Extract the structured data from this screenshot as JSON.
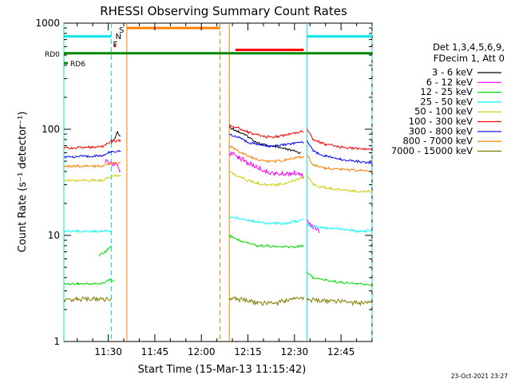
{
  "chart_data": {
    "type": "line",
    "title": "RHESSI Observing Summary Count Rates",
    "xlabel": "Start Time (15-Mar-13 11:15:42)",
    "ylabel": "Count Rate (s⁻¹ detector⁻¹)",
    "y_scale": "log",
    "ylim": [
      1,
      1000
    ],
    "y_ticks": [
      {
        "value": 1,
        "label": "1"
      },
      {
        "value": 10,
        "label": "10"
      },
      {
        "value": 100,
        "label": "100"
      },
      {
        "value": 1000,
        "label": "1000"
      }
    ],
    "xlim": [
      "11:15:42",
      "12:55"
    ],
    "x_ticks": [
      "11:30",
      "11:45",
      "12:00",
      "12:15",
      "12:30",
      "12:45"
    ],
    "legend_header": [
      "Det 1,3,4,5,6,9,",
      "FDecim 1, Att 0"
    ],
    "legend_position": "right",
    "footer_date": "23-Oct-2021 23:27",
    "flags": [
      {
        "label": "RD0",
        "color": "#008800",
        "level": 520,
        "start": "11:15:42",
        "end": "12:55"
      },
      {
        "label": "RD6",
        "color": "#008800",
        "level": 420,
        "start": "11:15:42",
        "end": "11:17"
      }
    ],
    "flag_markers": [
      {
        "label": "S",
        "color": "#ff7f00",
        "at": "11:34"
      },
      {
        "label": "N",
        "color": "#00dddd",
        "at": "11:33"
      },
      {
        "label": "F",
        "color": "#ff0000",
        "at": "11:32"
      }
    ],
    "flag_bars": [
      {
        "name": "night",
        "color": "#00e5e5",
        "level": 750,
        "start": "11:15:42",
        "end": "11:31"
      },
      {
        "name": "night",
        "color": "#00e5e5",
        "level": 750,
        "start": "12:34",
        "end": "12:55"
      },
      {
        "name": "saa",
        "color": "#ff7f00",
        "level": 900,
        "start": "11:36",
        "end": "12:06"
      },
      {
        "name": "flare",
        "color": "#ff0000",
        "level": 560,
        "start": "12:11",
        "end": "12:33"
      },
      {
        "name": "fpoint",
        "color": "#ff0000",
        "level": 610,
        "start": "11:32",
        "end": "11:32.5"
      }
    ],
    "vlines": [
      {
        "color": "#00e5e5",
        "style": "solid",
        "at": "11:15:42"
      },
      {
        "color": "#00e5e5",
        "style": "dashed",
        "at": "11:31"
      },
      {
        "color": "#ff7f00",
        "style": "solid",
        "at": "11:36"
      },
      {
        "color": "#ff7f00",
        "style": "dashed",
        "at": "12:06"
      },
      {
        "color": "#ff7f00",
        "style": "solid",
        "at": "12:09"
      },
      {
        "color": "#00e5e5",
        "style": "solid",
        "at": "12:34"
      },
      {
        "color": "#00e5e5",
        "style": "dashed",
        "at": "12:55"
      }
    ],
    "series": [
      {
        "name": "3 - 6 keV",
        "color": "#000000",
        "segments": [
          {
            "x": [
              "11:31",
              "11:32",
              "11:33",
              "11:34"
            ],
            "y": [
              75,
              80,
              95,
              85
            ]
          },
          {
            "x": [
              "12:09",
              "12:12",
              "12:15",
              "12:18",
              "12:21",
              "12:24",
              "12:27",
              "12:30",
              "12:32"
            ],
            "y": [
              105,
              95,
              85,
              75,
              70,
              68,
              65,
              62,
              60
            ]
          }
        ]
      },
      {
        "name": "6 - 12 keV",
        "color": "#ff00ff",
        "segments": [
          {
            "x": [
              "11:29",
              "11:31",
              "11:33",
              "11:34"
            ],
            "y": [
              50,
              48,
              45,
              40
            ]
          },
          {
            "x": [
              "12:09",
              "12:12",
              "12:15",
              "12:18",
              "12:21",
              "12:24",
              "12:27",
              "12:30",
              "12:33"
            ],
            "y": [
              60,
              55,
              48,
              44,
              40,
              38,
              38,
              39,
              36
            ]
          },
          {
            "x": [
              "12:34",
              "12:36",
              "12:38"
            ],
            "y": [
              14,
              12,
              11
            ]
          }
        ]
      },
      {
        "name": "12 - 25 keV",
        "color": "#00dd00",
        "segments": [
          {
            "x": [
              "11:15:42",
              "11:20",
              "11:25",
              "11:28",
              "11:30",
              "11:32"
            ],
            "y": [
              3.5,
              3.5,
              3.5,
              3.5,
              3.8,
              3.8
            ]
          },
          {
            "x": [
              "11:27",
              "11:29",
              "11:31"
            ],
            "y": [
              6.5,
              7,
              8
            ]
          },
          {
            "x": [
              "12:09",
              "12:12",
              "12:15",
              "12:18",
              "12:21",
              "12:24",
              "12:27",
              "12:30",
              "12:33"
            ],
            "y": [
              10,
              9,
              8.5,
              8,
              8,
              7.8,
              7.8,
              7.8,
              8
            ]
          },
          {
            "x": [
              "12:34",
              "12:36",
              "12:40",
              "12:45",
              "12:50",
              "12:55"
            ],
            "y": [
              4.5,
              4,
              3.8,
              3.6,
              3.5,
              3.4
            ]
          }
        ]
      },
      {
        "name": "25 - 50 keV",
        "color": "#00ffff",
        "segments": [
          {
            "x": [
              "11:15:42",
              "11:20",
              "11:25",
              "11:29",
              "11:31"
            ],
            "y": [
              11,
              11,
              11,
              11,
              11
            ]
          },
          {
            "x": [
              "12:09",
              "12:12",
              "12:15",
              "12:18",
              "12:21",
              "12:24",
              "12:27",
              "12:30",
              "12:33"
            ],
            "y": [
              15,
              14.5,
              14,
              13.5,
              13,
              13,
              13,
              13.5,
              14
            ]
          },
          {
            "x": [
              "12:34",
              "12:38",
              "12:45",
              "12:50",
              "12:55"
            ],
            "y": [
              12.5,
              12,
              11.5,
              11,
              11
            ]
          }
        ]
      },
      {
        "name": "50 - 100 keV",
        "color": "#cccc00",
        "segments": [
          {
            "x": [
              "11:15:42",
              "11:20",
              "11:25",
              "11:28",
              "11:31",
              "11:34"
            ],
            "y": [
              33,
              33,
              33,
              33,
              36,
              37
            ]
          },
          {
            "x": [
              "12:09",
              "12:12",
              "12:15",
              "12:18",
              "12:21",
              "12:24",
              "12:27",
              "12:30",
              "12:33"
            ],
            "y": [
              40,
              36,
              33,
              31,
              30,
              30,
              31,
              33,
              36
            ]
          },
          {
            "x": [
              "12:34",
              "12:36",
              "12:40",
              "12:45",
              "12:50",
              "12:55"
            ],
            "y": [
              38,
              30,
              28,
              27,
              26,
              26
            ]
          }
        ]
      },
      {
        "name": "100 - 300 keV",
        "color": "#ff0000",
        "segments": [
          {
            "x": [
              "11:15:42",
              "11:20",
              "11:25",
              "11:28",
              "11:31",
              "11:34"
            ],
            "y": [
              67,
              67,
              68,
              68,
              78,
              78
            ]
          },
          {
            "x": [
              "12:09",
              "12:12",
              "12:15",
              "12:18",
              "12:21",
              "12:24",
              "12:27",
              "12:30",
              "12:33"
            ],
            "y": [
              110,
              102,
              94,
              88,
              85,
              85,
              88,
              92,
              97
            ]
          },
          {
            "x": [
              "12:34",
              "12:36",
              "12:40",
              "12:45",
              "12:50",
              "12:55"
            ],
            "y": [
              100,
              80,
              72,
              68,
              66,
              64
            ]
          }
        ]
      },
      {
        "name": "300 - 800 keV",
        "color": "#0000ff",
        "segments": [
          {
            "x": [
              "11:15:42",
              "11:20",
              "11:25",
              "11:28",
              "11:31",
              "11:34"
            ],
            "y": [
              55,
              55,
              56,
              56,
              62,
              62
            ]
          },
          {
            "x": [
              "12:09",
              "12:12",
              "12:15",
              "12:18",
              "12:21",
              "12:24",
              "12:27",
              "12:30",
              "12:33"
            ],
            "y": [
              90,
              83,
              76,
              72,
              70,
              70,
              72,
              74,
              76
            ]
          },
          {
            "x": [
              "12:34",
              "12:36",
              "12:40",
              "12:45",
              "12:50",
              "12:55"
            ],
            "y": [
              78,
              62,
              56,
              52,
              50,
              48
            ]
          }
        ]
      },
      {
        "name": "800 - 7000 keV",
        "color": "#ff8000",
        "segments": [
          {
            "x": [
              "11:15:42",
              "11:20",
              "11:25",
              "11:28",
              "11:31",
              "11:34"
            ],
            "y": [
              45,
              45,
              45,
              45,
              48,
              48
            ]
          },
          {
            "x": [
              "12:09",
              "12:12",
              "12:15",
              "12:18",
              "12:21",
              "12:24",
              "12:27",
              "12:30",
              "12:33"
            ],
            "y": [
              70,
              62,
              56,
              52,
              50,
              50,
              51,
              53,
              56
            ]
          },
          {
            "x": [
              "12:34",
              "12:36",
              "12:40",
              "12:45",
              "12:50",
              "12:55"
            ],
            "y": [
              58,
              46,
              43,
              42,
              41,
              40
            ]
          }
        ]
      },
      {
        "name": "7000 - 15000 keV",
        "color": "#808000",
        "segments": [
          {
            "x": [
              "11:15:42",
              "11:20",
              "11:25",
              "11:28",
              "11:31"
            ],
            "y": [
              2.5,
              2.5,
              2.5,
              2.5,
              2.5
            ]
          },
          {
            "x": [
              "12:09",
              "12:12",
              "12:15",
              "12:18",
              "12:21",
              "12:24",
              "12:27",
              "12:30",
              "12:33"
            ],
            "y": [
              2.6,
              2.5,
              2.4,
              2.3,
              2.3,
              2.3,
              2.4,
              2.5,
              2.6
            ]
          },
          {
            "x": [
              "12:34",
              "12:38",
              "12:45",
              "12:50",
              "12:55"
            ],
            "y": [
              2.5,
              2.4,
              2.4,
              2.3,
              2.3
            ]
          }
        ]
      }
    ]
  }
}
